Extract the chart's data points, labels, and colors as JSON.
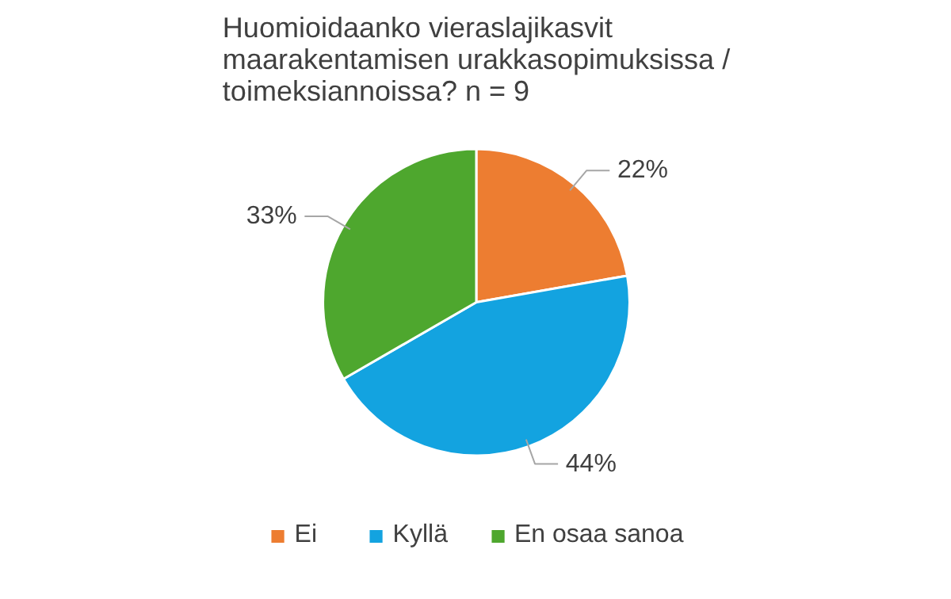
{
  "chart_data": {
    "type": "pie",
    "title": "Huomioidaanko vieraslajikasvit maarakentamisen urakkasopimuksissa / toimeksiannoissa? n = 9",
    "categories": [
      "Ei",
      "Kyllä",
      "En osaa sanoa"
    ],
    "values": [
      22,
      44,
      33
    ],
    "colors": [
      "#ed7d31",
      "#13a3e0",
      "#4ea72e"
    ],
    "value_labels": [
      "22%",
      "44%",
      "33%"
    ],
    "legend": "bottom"
  }
}
